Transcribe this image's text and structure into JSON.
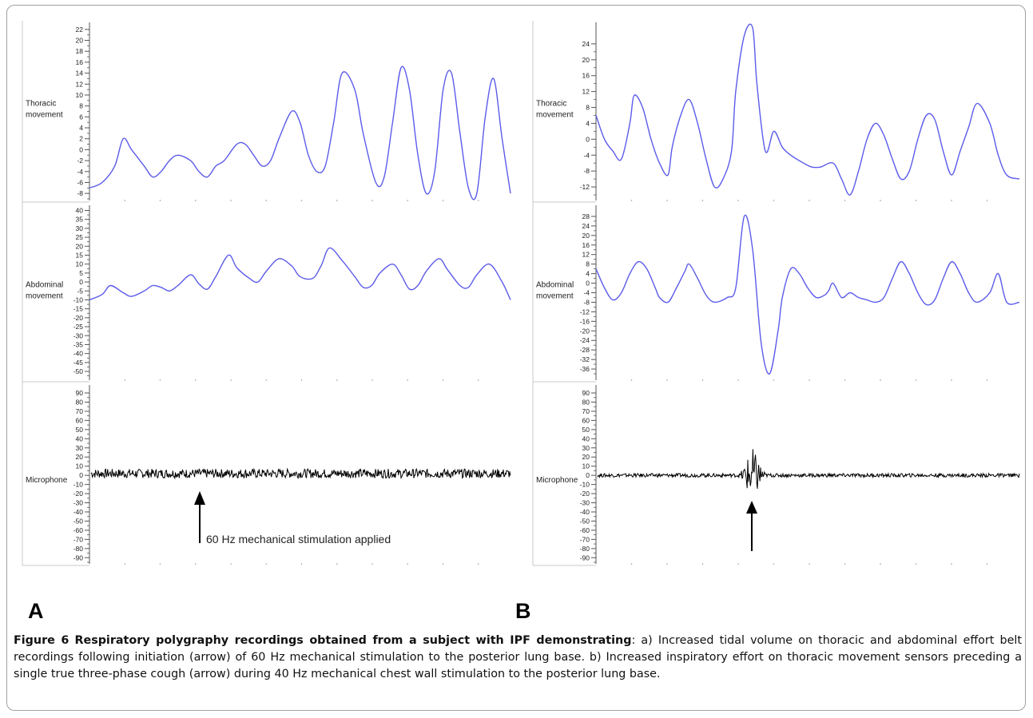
{
  "figure": {
    "caption_label": "Figure 6",
    "caption_title": "Respiratory polygraphy recordings obtained from a subject with IPF demonstrating",
    "caption_body": ": a) Increased tidal volume on thoracic and abdominal effort belt recordings following initiation (arrow) of 60 Hz mechanical stimulation to the posterior lung base. b) Increased inspiratory effort on thoracic movement sensors preceding a single true three-phase cough (arrow) during 40 Hz mechanical chest wall stimulation to the posterior lung base."
  },
  "colors": {
    "trace": "#5b5bea",
    "microphone": "#000000",
    "axis": "#555555",
    "divider": "#c8c8c8"
  },
  "chart_data": [
    {
      "panel": "A",
      "type": "line",
      "annotation": "60 Hz mechanical stimulation applied",
      "channels": [
        {
          "name": "Thoracic movement",
          "label_lines": [
            "Thoracic",
            "movement"
          ],
          "ylim": [
            -9,
            23
          ],
          "ticks": [
            22,
            20,
            18,
            16,
            14,
            12,
            10,
            8,
            6,
            4,
            2,
            0,
            -2,
            -4,
            -6,
            -8
          ],
          "x": [
            0,
            3,
            6,
            8,
            10,
            13,
            15,
            17,
            19,
            21,
            24,
            26,
            28,
            30,
            32,
            35,
            37,
            39,
            41,
            43,
            45,
            48,
            50,
            52,
            54,
            56,
            58,
            60,
            63,
            65,
            68,
            70,
            72,
            74,
            76,
            78,
            80,
            82,
            84,
            86,
            88,
            90,
            92,
            94,
            96,
            98,
            100
          ],
          "values": [
            -7,
            -6,
            -3,
            2,
            0,
            -3,
            -5,
            -4,
            -2,
            -1,
            -2,
            -4,
            -5,
            -3,
            -2,
            1,
            1,
            -1,
            -3,
            -2,
            2,
            7,
            5,
            -1,
            -4,
            -3,
            5,
            14,
            11,
            3,
            -6,
            -5,
            5,
            15,
            11,
            -1,
            -8,
            -4,
            11,
            14,
            3,
            -7,
            -8,
            6,
            13,
            2,
            -8
          ]
        },
        {
          "name": "Abdominal movement",
          "label_lines": [
            "Abdominal",
            "movement"
          ],
          "ylim": [
            -54,
            42
          ],
          "ticks": [
            40,
            35,
            30,
            25,
            20,
            15,
            10,
            5,
            0,
            -5,
            -10,
            -15,
            -20,
            -25,
            -30,
            -35,
            -40,
            -45,
            -50
          ],
          "x": [
            0,
            3,
            5,
            8,
            10,
            13,
            15,
            17,
            19,
            21,
            24,
            26,
            28,
            30,
            33,
            35,
            38,
            40,
            42,
            45,
            48,
            50,
            53,
            55,
            57,
            60,
            63,
            65,
            67,
            69,
            72,
            74,
            76,
            78,
            80,
            83,
            85,
            88,
            90,
            92,
            95,
            98,
            100
          ],
          "values": [
            -10,
            -7,
            -2,
            -6,
            -8,
            -5,
            -2,
            -3,
            -5,
            -2,
            4,
            -1,
            -4,
            3,
            15,
            8,
            2,
            0,
            6,
            13,
            9,
            3,
            2,
            9,
            19,
            12,
            3,
            -3,
            -2,
            5,
            10,
            4,
            -4,
            -2,
            6,
            13,
            7,
            -2,
            -3,
            4,
            10,
            0,
            -10
          ]
        },
        {
          "name": "Microphone",
          "label_lines": [
            "Microphone"
          ],
          "ylim": [
            -95,
            97
          ],
          "ticks": [
            90,
            80,
            70,
            60,
            50,
            40,
            30,
            20,
            10,
            0,
            -10,
            -20,
            -30,
            -40,
            -50,
            -60,
            -70,
            -80,
            -90
          ],
          "noise_center": 2,
          "noise_amplitude": 5
        }
      ]
    },
    {
      "panel": "B",
      "type": "line",
      "annotation": "",
      "channels": [
        {
          "name": "Thoracic movement",
          "label_lines": [
            "Thoracic",
            "movement"
          ],
          "ylim": [
            -15,
            29
          ],
          "ticks": [
            24,
            20,
            16,
            12,
            8,
            4,
            0,
            -4,
            -8,
            -12
          ],
          "x": [
            0,
            2,
            4,
            6,
            8,
            9,
            11,
            13,
            15,
            17,
            18,
            20,
            22,
            24,
            26,
            28,
            30,
            32,
            33,
            35,
            37,
            38,
            40,
            42,
            44,
            46,
            49,
            51,
            53,
            56,
            58,
            60,
            62,
            64,
            66,
            68,
            70,
            72,
            74,
            76,
            78,
            80,
            82,
            84,
            86,
            88,
            90,
            93,
            95,
            97,
            100
          ],
          "values": [
            6,
            0,
            -3,
            -5,
            4,
            11,
            8,
            0,
            -6,
            -9,
            -2,
            6,
            10,
            4,
            -5,
            -12,
            -10,
            -3,
            12,
            26,
            28,
            14,
            -3,
            2,
            -2,
            -4,
            -6,
            -7,
            -7,
            -6,
            -10,
            -14,
            -8,
            0,
            4,
            1,
            -5,
            -10,
            -8,
            0,
            6,
            5,
            -3,
            -9,
            -3,
            3,
            9,
            4,
            -4,
            -9,
            -10
          ]
        },
        {
          "name": "Abdominal movement",
          "label_lines": [
            "Abdominal",
            "movement"
          ],
          "ylim": [
            -40,
            32
          ],
          "ticks": [
            28,
            24,
            20,
            16,
            12,
            8,
            4,
            0,
            -4,
            -8,
            -12,
            -16,
            -20,
            -24,
            -28,
            -32,
            -36
          ],
          "x": [
            0,
            2,
            4,
            6,
            8,
            10,
            12,
            14,
            15,
            17,
            19,
            21,
            22,
            24,
            26,
            28,
            31,
            33,
            35,
            37,
            39,
            41,
            43,
            44,
            46,
            48,
            50,
            52,
            54,
            55,
            56,
            58,
            60,
            62,
            64,
            66,
            68,
            70,
            72,
            74,
            76,
            78,
            80,
            82,
            84,
            86,
            88,
            90,
            93,
            95,
            97,
            100
          ],
          "values": [
            6,
            -2,
            -7,
            -4,
            4,
            9,
            6,
            -2,
            -6,
            -8,
            -2,
            5,
            8,
            2,
            -5,
            -8,
            -6,
            -2,
            28,
            14,
            -25,
            -38,
            -20,
            -6,
            6,
            4,
            -2,
            -6,
            -5,
            -3,
            0,
            -6,
            -4,
            -6,
            -7,
            -8,
            -6,
            2,
            9,
            4,
            -4,
            -9,
            -7,
            2,
            9,
            4,
            -4,
            -8,
            -4,
            4,
            -8,
            -8
          ]
        },
        {
          "name": "Microphone",
          "label_lines": [
            "Microphone"
          ],
          "ylim": [
            -95,
            97
          ],
          "ticks": [
            90,
            80,
            70,
            60,
            50,
            40,
            30,
            20,
            10,
            0,
            -10,
            -20,
            -30,
            -40,
            -50,
            -60,
            -70,
            -80,
            -90
          ],
          "noise_center": 0,
          "noise_amplitude": 2,
          "burst_x": [
            34,
            40
          ],
          "burst_amplitude": 28
        }
      ]
    }
  ]
}
